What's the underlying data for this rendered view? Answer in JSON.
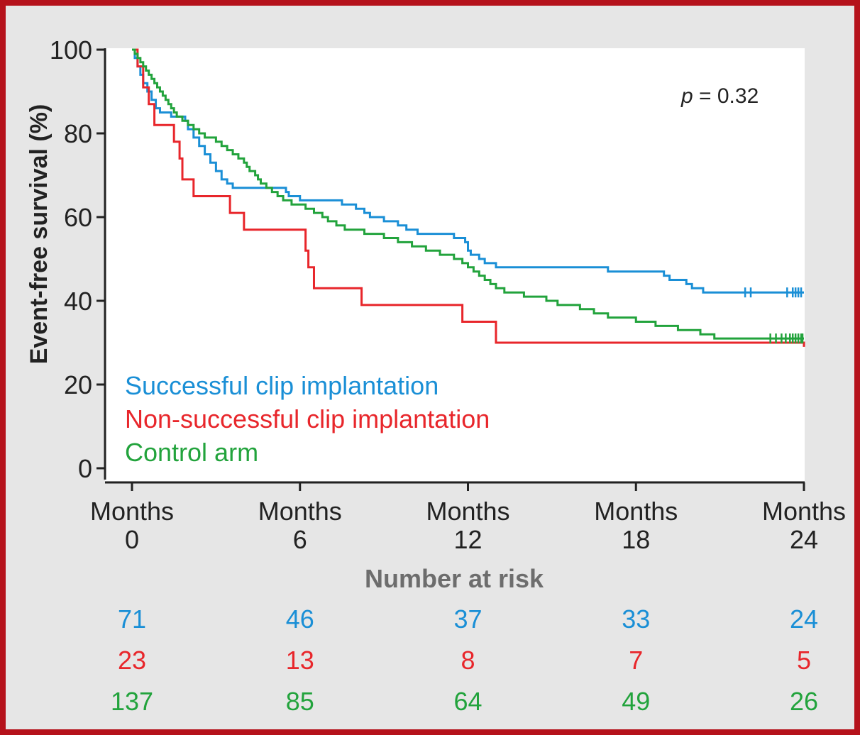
{
  "chart_data": {
    "type": "line",
    "subtype": "kaplan-meier",
    "ylabel": "Event-free survival (%)",
    "xlabel": "",
    "xlim": [
      0,
      24
    ],
    "ylim": [
      0,
      100
    ],
    "yticks": [
      0,
      20,
      40,
      60,
      80,
      100
    ],
    "xticks": [
      0,
      6,
      12,
      18,
      24
    ],
    "xtick_prefix": "Months",
    "xtick_labels": [
      "0",
      "6",
      "12",
      "18",
      "24"
    ],
    "annotation": {
      "p_label": "p",
      "p_rest": " = 0.32"
    },
    "legend_placement": "bottom-left",
    "grid": false,
    "series": [
      {
        "name": "Successful clip implantation",
        "color": "#1a8fd6",
        "steps": [
          [
            0,
            100
          ],
          [
            0.1,
            98
          ],
          [
            0.2,
            96
          ],
          [
            0.3,
            94
          ],
          [
            0.4,
            92
          ],
          [
            0.55,
            90
          ],
          [
            0.7,
            88
          ],
          [
            0.85,
            86
          ],
          [
            1.0,
            85
          ],
          [
            1.4,
            84
          ],
          [
            1.9,
            83
          ],
          [
            2.0,
            81
          ],
          [
            2.2,
            79
          ],
          [
            2.4,
            77
          ],
          [
            2.6,
            75
          ],
          [
            2.8,
            73
          ],
          [
            3.0,
            71
          ],
          [
            3.2,
            69
          ],
          [
            3.4,
            68
          ],
          [
            3.6,
            67
          ],
          [
            5.5,
            66
          ],
          [
            5.6,
            65
          ],
          [
            6.0,
            64
          ],
          [
            7.5,
            63
          ],
          [
            8.0,
            62
          ],
          [
            8.3,
            61
          ],
          [
            8.5,
            60
          ],
          [
            9.0,
            59
          ],
          [
            9.5,
            58
          ],
          [
            9.8,
            57
          ],
          [
            10.2,
            56
          ],
          [
            11.5,
            55
          ],
          [
            11.9,
            54
          ],
          [
            12.0,
            52
          ],
          [
            12.1,
            51
          ],
          [
            12.4,
            50
          ],
          [
            12.6,
            49
          ],
          [
            13.0,
            48
          ],
          [
            17.0,
            47
          ],
          [
            19.0,
            46
          ],
          [
            19.2,
            45
          ],
          [
            19.8,
            44
          ],
          [
            20.0,
            43
          ],
          [
            20.4,
            42
          ],
          [
            24,
            42
          ]
        ],
        "censor_x": [
          21.9,
          22.1,
          23.4,
          23.6,
          23.7,
          23.8,
          23.9
        ]
      },
      {
        "name": "Non-successful clip implantation",
        "color": "#e8262b",
        "steps": [
          [
            0,
            100
          ],
          [
            0.2,
            96
          ],
          [
            0.4,
            91
          ],
          [
            0.6,
            87
          ],
          [
            0.8,
            82
          ],
          [
            1.4,
            82
          ],
          [
            1.5,
            78
          ],
          [
            1.7,
            74
          ],
          [
            1.8,
            69
          ],
          [
            2.2,
            65
          ],
          [
            3.5,
            61
          ],
          [
            4.0,
            57
          ],
          [
            6.2,
            52
          ],
          [
            6.3,
            48
          ],
          [
            6.5,
            43
          ],
          [
            8.2,
            39
          ],
          [
            11.8,
            35
          ],
          [
            13.0,
            30
          ],
          [
            23.8,
            30
          ],
          [
            24,
            29
          ]
        ],
        "censor_x": []
      },
      {
        "name": "Control arm",
        "color": "#22a33c",
        "steps": [
          [
            0,
            100
          ],
          [
            0.1,
            99
          ],
          [
            0.2,
            98
          ],
          [
            0.3,
            97
          ],
          [
            0.4,
            96
          ],
          [
            0.5,
            95
          ],
          [
            0.6,
            94
          ],
          [
            0.7,
            93
          ],
          [
            0.8,
            92
          ],
          [
            0.9,
            91
          ],
          [
            1.0,
            90
          ],
          [
            1.1,
            89
          ],
          [
            1.2,
            88
          ],
          [
            1.3,
            87
          ],
          [
            1.4,
            86
          ],
          [
            1.5,
            85
          ],
          [
            1.6,
            84
          ],
          [
            1.8,
            83
          ],
          [
            2.0,
            82
          ],
          [
            2.2,
            81
          ],
          [
            2.4,
            80
          ],
          [
            2.6,
            79
          ],
          [
            3.0,
            78
          ],
          [
            3.2,
            77
          ],
          [
            3.4,
            76
          ],
          [
            3.6,
            75
          ],
          [
            3.8,
            74
          ],
          [
            4.0,
            73
          ],
          [
            4.1,
            72
          ],
          [
            4.2,
            71
          ],
          [
            4.4,
            70
          ],
          [
            4.5,
            69
          ],
          [
            4.6,
            68
          ],
          [
            4.8,
            67
          ],
          [
            5.0,
            66
          ],
          [
            5.2,
            65
          ],
          [
            5.4,
            64
          ],
          [
            5.7,
            63
          ],
          [
            6.2,
            62
          ],
          [
            6.5,
            61
          ],
          [
            6.8,
            60
          ],
          [
            7.0,
            59
          ],
          [
            7.3,
            58
          ],
          [
            7.6,
            57
          ],
          [
            8.3,
            56
          ],
          [
            9.0,
            55
          ],
          [
            9.5,
            54
          ],
          [
            10.0,
            53
          ],
          [
            10.5,
            52
          ],
          [
            11.0,
            51
          ],
          [
            11.5,
            50
          ],
          [
            11.8,
            49
          ],
          [
            12.0,
            48
          ],
          [
            12.2,
            47
          ],
          [
            12.4,
            46
          ],
          [
            12.6,
            45
          ],
          [
            12.8,
            44
          ],
          [
            13.0,
            43
          ],
          [
            13.3,
            42
          ],
          [
            14.0,
            41
          ],
          [
            14.8,
            40
          ],
          [
            15.2,
            39
          ],
          [
            16.0,
            38
          ],
          [
            16.5,
            37
          ],
          [
            17.0,
            36
          ],
          [
            18.0,
            35
          ],
          [
            18.7,
            34
          ],
          [
            19.5,
            33
          ],
          [
            20.3,
            32
          ],
          [
            20.8,
            31
          ],
          [
            24,
            31
          ]
        ],
        "censor_x": [
          22.8,
          23.0,
          23.2,
          23.35,
          23.5,
          23.6,
          23.7,
          23.8,
          23.9,
          23.95
        ]
      }
    ],
    "risk_table": {
      "title": "Number at risk",
      "rows": [
        {
          "name": "Successful clip implantation",
          "values": [
            "71",
            "46",
            "37",
            "33",
            "24"
          ]
        },
        {
          "name": "Non-successful clip implantation",
          "values": [
            "23",
            "13",
            "8",
            "7",
            "5"
          ]
        },
        {
          "name": "Control arm",
          "values": [
            "137",
            "85",
            "64",
            "49",
            "26"
          ]
        }
      ]
    }
  }
}
